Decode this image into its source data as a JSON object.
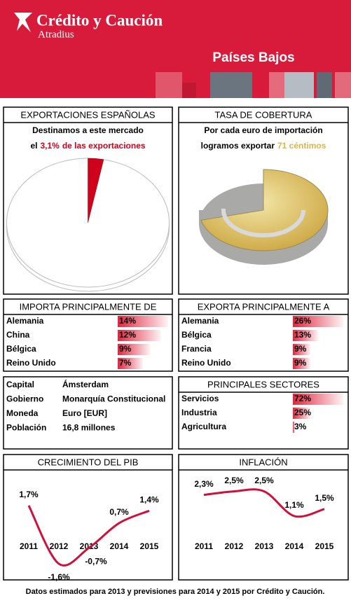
{
  "header": {
    "brand": "Crédito y Caución",
    "sub": "Atradius",
    "country": "Países Bajos"
  },
  "chart_data": [
    {
      "type": "pie",
      "title": "EXPORTACIONES ESPAÑOLAS",
      "text": "Destinamos a este mercado",
      "text_prefix": "el",
      "values": [
        3.1
      ],
      "value_labels": [
        "3,1%"
      ],
      "text_suffix": "de las exportaciones",
      "color": "#d0021b"
    },
    {
      "type": "pie",
      "title": "TASA DE COBERTURA",
      "text": "Por cada euro de importación",
      "text_prefix": "logramos exportar",
      "values": [
        71
      ],
      "value_labels": [
        "71 céntimos"
      ],
      "color": "#d8b64a"
    },
    {
      "type": "bar",
      "title": "IMPORTA PRINCIPALMENTE DE",
      "categories": [
        "Alemania",
        "China",
        "Bélgica",
        "Reino Unido"
      ],
      "values": [
        14,
        12,
        9,
        7
      ],
      "value_labels": [
        "14%",
        "12%",
        "9%",
        "7%"
      ],
      "xlim": [
        0,
        14
      ],
      "color": "#e0263f"
    },
    {
      "type": "bar",
      "title": "EXPORTA PRINCIPALMENTE A",
      "categories": [
        "Alemania",
        "Bélgica",
        "Francia",
        "Reino Unido"
      ],
      "values": [
        26,
        13,
        9,
        9
      ],
      "value_labels": [
        "26%",
        "13%",
        "9%",
        "9%"
      ],
      "xlim": [
        0,
        26
      ],
      "color": "#e0263f"
    },
    {
      "type": "bar",
      "title": "PRINCIPALES SECTORES",
      "categories": [
        "Servicios",
        "Industria",
        "Agricultura"
      ],
      "values": [
        72,
        25,
        3
      ],
      "value_labels": [
        "72%",
        "25%",
        "3%"
      ],
      "xlim": [
        0,
        72
      ],
      "color": "#e0263f"
    },
    {
      "type": "line",
      "title": "CRECIMIENTO DEL PIB",
      "categories": [
        "2011",
        "2012",
        "2013",
        "2014",
        "2015"
      ],
      "values": [
        1.7,
        -1.6,
        -0.7,
        0.7,
        1.4
      ],
      "value_labels": [
        "1,7%",
        "-1,6%",
        "-0,7%",
        "0,7%",
        "1,4%"
      ],
      "ylim": [
        -2,
        3
      ],
      "color": "#d0103a"
    },
    {
      "type": "line",
      "title": "INFLACIÓN",
      "categories": [
        "2011",
        "2012",
        "2013",
        "2014",
        "2015"
      ],
      "values": [
        2.3,
        2.5,
        2.5,
        1.1,
        1.5
      ],
      "value_labels": [
        "2,3%",
        "2,5%",
        "2,5%",
        "1,1%",
        "1,5%"
      ],
      "ylim": [
        -2,
        3
      ],
      "color": "#d0103a"
    }
  ],
  "datos_generales": {
    "rows": [
      [
        "Capital",
        "Ámsterdam"
      ],
      [
        "Gobierno",
        "Monarquía Constitucional"
      ],
      [
        "Moneda",
        "Euro [EUR]"
      ],
      [
        "Población",
        "16,8 millones"
      ]
    ]
  },
  "footer": "Datos estimados para 2013 y previsiones para 2014 y 2015 por Crédito y Caución."
}
